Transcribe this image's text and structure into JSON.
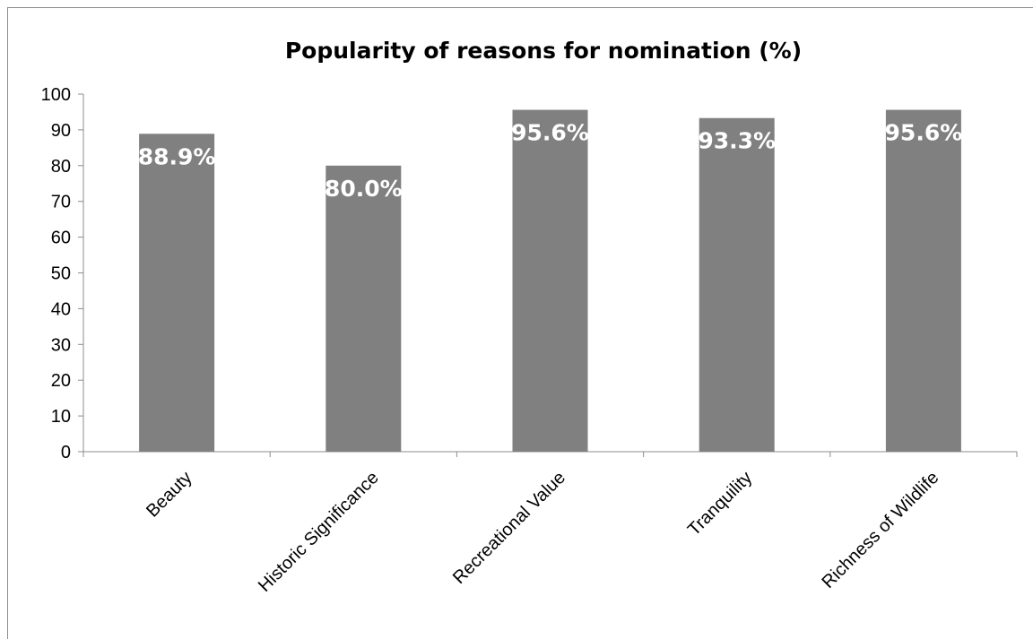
{
  "chart_data": {
    "type": "bar",
    "title": "Popularity of reasons for nomination (%)",
    "categories": [
      "Beauty",
      "Historic Significance",
      "Recreational Value",
      "Tranquility",
      "Richness of Wildlife"
    ],
    "values": [
      88.9,
      80.0,
      95.6,
      93.3,
      95.6
    ],
    "data_labels": [
      "88.9%",
      "80.0%",
      "95.6%",
      "93.3%",
      "95.6%"
    ],
    "y_ticks": [
      "0",
      "10",
      "20",
      "30",
      "40",
      "50",
      "60",
      "70",
      "80",
      "90",
      "100"
    ],
    "ylim": [
      0,
      100
    ],
    "xlabel": "",
    "ylabel": "",
    "grid": false,
    "legend": "none",
    "bar_color": "#808080",
    "label_color": "#ffffff"
  }
}
